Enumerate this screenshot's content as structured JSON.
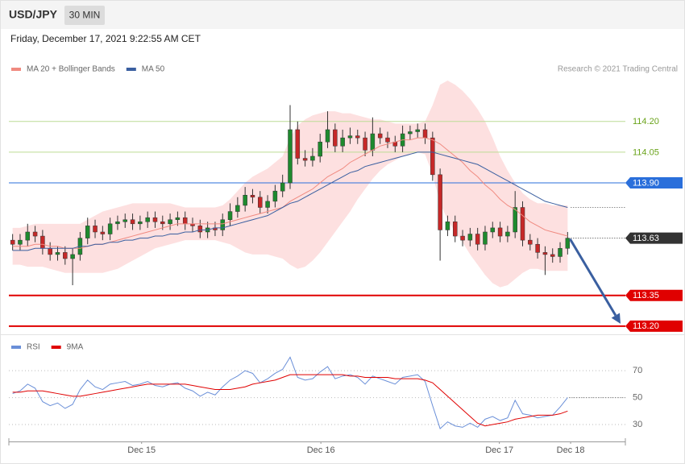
{
  "header": {
    "symbol": "USD/JPY",
    "interval": "30 MIN",
    "timestamp": "Friday, December 17, 2021 9:22:55 AM CET"
  },
  "chart_data": [
    {
      "type": "candlestick",
      "credit": "Research © 2021 Trading Central",
      "up_color": "#1e8a2e",
      "down_color": "#c62828",
      "xlim": [
        -0.5,
        81.7
      ],
      "ylim": [
        113.16,
        114.4
      ],
      "open": [
        113.62,
        113.6,
        113.62,
        113.66,
        113.64,
        113.58,
        113.55,
        113.56,
        113.53,
        113.55,
        113.63,
        113.69,
        113.66,
        113.65,
        113.7,
        113.71,
        113.72,
        113.7,
        113.71,
        113.73,
        113.71,
        113.7,
        113.72,
        113.73,
        113.7,
        113.69,
        113.66,
        113.68,
        113.67,
        113.72,
        113.76,
        113.79,
        113.84,
        113.83,
        113.78,
        113.81,
        113.86,
        113.9,
        114.16,
        114.02,
        114.01,
        114.03,
        114.1,
        114.16,
        114.08,
        114.12,
        114.13,
        114.12,
        114.06,
        114.14,
        114.12,
        114.1,
        114.08,
        114.14,
        114.15,
        114.16,
        114.12,
        113.94,
        113.67,
        113.71,
        113.64,
        113.62,
        113.65,
        113.6,
        113.66,
        113.68,
        113.64,
        113.66,
        113.78,
        113.62,
        113.6,
        113.56,
        113.55,
        113.54,
        113.58
      ],
      "high": [
        113.65,
        113.65,
        113.7,
        113.69,
        113.67,
        113.61,
        113.59,
        113.59,
        113.58,
        113.66,
        113.73,
        113.72,
        113.69,
        113.73,
        113.74,
        113.75,
        113.75,
        113.74,
        113.76,
        113.76,
        113.74,
        113.75,
        113.76,
        113.76,
        113.73,
        113.72,
        113.71,
        113.71,
        113.75,
        113.8,
        113.83,
        113.88,
        113.87,
        113.86,
        113.84,
        113.89,
        113.94,
        114.28,
        114.2,
        114.06,
        114.07,
        114.14,
        114.25,
        114.19,
        114.16,
        114.17,
        114.16,
        114.15,
        114.22,
        114.17,
        114.15,
        114.13,
        114.18,
        114.18,
        114.19,
        114.19,
        114.15,
        113.97,
        113.74,
        113.74,
        113.67,
        113.68,
        113.68,
        113.69,
        113.71,
        113.71,
        113.69,
        113.86,
        113.81,
        113.65,
        113.63,
        113.59,
        113.58,
        113.61,
        113.66
      ],
      "low": [
        113.57,
        113.57,
        113.59,
        113.61,
        113.55,
        113.52,
        113.52,
        113.5,
        113.4,
        113.52,
        113.6,
        113.63,
        113.62,
        113.62,
        113.67,
        113.68,
        113.67,
        113.67,
        113.68,
        113.68,
        113.67,
        113.67,
        113.69,
        113.67,
        113.66,
        113.63,
        113.63,
        113.64,
        113.64,
        113.69,
        113.73,
        113.76,
        113.8,
        113.75,
        113.75,
        113.78,
        113.83,
        113.87,
        113.99,
        113.98,
        113.98,
        114.0,
        114.07,
        114.05,
        114.05,
        114.09,
        114.09,
        114.03,
        114.03,
        114.09,
        114.07,
        114.05,
        114.05,
        114.11,
        114.12,
        114.09,
        113.91,
        113.52,
        113.64,
        113.61,
        113.59,
        113.59,
        113.57,
        113.57,
        113.63,
        113.61,
        113.61,
        113.63,
        113.59,
        113.57,
        113.53,
        113.45,
        113.51,
        113.51,
        113.55
      ],
      "close": [
        113.6,
        113.62,
        113.66,
        113.64,
        113.58,
        113.55,
        113.56,
        113.53,
        113.55,
        113.63,
        113.69,
        113.66,
        113.65,
        113.7,
        113.71,
        113.72,
        113.7,
        113.71,
        113.73,
        113.71,
        113.7,
        113.72,
        113.73,
        113.7,
        113.69,
        113.66,
        113.68,
        113.67,
        113.72,
        113.76,
        113.79,
        113.84,
        113.83,
        113.78,
        113.81,
        113.86,
        113.9,
        114.16,
        114.02,
        114.01,
        114.03,
        114.1,
        114.16,
        114.08,
        114.12,
        114.13,
        114.12,
        114.06,
        114.14,
        114.12,
        114.1,
        114.08,
        114.14,
        114.15,
        114.16,
        114.12,
        113.94,
        113.67,
        113.71,
        113.64,
        113.62,
        113.65,
        113.6,
        113.66,
        113.68,
        113.64,
        113.66,
        113.78,
        113.62,
        113.6,
        113.56,
        113.55,
        113.54,
        113.58,
        113.63
      ],
      "series": [
        {
          "name": "MA 20 + Bollinger Bands",
          "color": "#f08a80",
          "band_color": "#fde0e0",
          "values": [
            113.59,
            113.59,
            113.59,
            113.6,
            113.6,
            113.59,
            113.59,
            113.58,
            113.58,
            113.58,
            113.59,
            113.6,
            113.6,
            113.61,
            113.62,
            113.63,
            113.64,
            113.65,
            113.66,
            113.67,
            113.68,
            113.69,
            113.7,
            113.7,
            113.7,
            113.7,
            113.7,
            113.7,
            113.7,
            113.71,
            113.72,
            113.73,
            113.74,
            113.75,
            113.76,
            113.77,
            113.78,
            113.81,
            113.83,
            113.85,
            113.87,
            113.9,
            113.93,
            113.95,
            113.97,
            114.0,
            114.02,
            114.04,
            114.06,
            114.08,
            114.09,
            114.1,
            114.11,
            114.11,
            114.12,
            114.12,
            114.11,
            114.09,
            114.06,
            114.03,
            114.0,
            113.96,
            113.93,
            113.89,
            113.86,
            113.82,
            113.79,
            113.77,
            113.74,
            113.71,
            113.69,
            113.67,
            113.66,
            113.65,
            113.64
          ],
          "upper": [
            113.68,
            113.68,
            113.69,
            113.7,
            113.7,
            113.7,
            113.7,
            113.7,
            113.7,
            113.7,
            113.72,
            113.74,
            113.76,
            113.77,
            113.78,
            113.79,
            113.8,
            113.8,
            113.8,
            113.8,
            113.8,
            113.8,
            113.79,
            113.78,
            113.78,
            113.78,
            113.78,
            113.78,
            113.79,
            113.82,
            113.86,
            113.9,
            113.93,
            113.95,
            113.97,
            114.0,
            114.03,
            114.12,
            114.18,
            114.21,
            114.23,
            114.24,
            114.25,
            114.25,
            114.24,
            114.24,
            114.23,
            114.22,
            114.21,
            114.21,
            114.2,
            114.19,
            114.19,
            114.19,
            114.19,
            114.2,
            114.28,
            114.38,
            114.4,
            114.38,
            114.35,
            114.31,
            114.26,
            114.2,
            114.12,
            114.03,
            113.96,
            113.9,
            113.85,
            113.82,
            113.8,
            113.8,
            113.79,
            113.79,
            113.79
          ],
          "lower": [
            113.5,
            113.5,
            113.49,
            113.49,
            113.49,
            113.48,
            113.47,
            113.46,
            113.46,
            113.46,
            113.46,
            113.46,
            113.46,
            113.47,
            113.48,
            113.5,
            113.52,
            113.54,
            113.56,
            113.58,
            113.59,
            113.6,
            113.61,
            113.62,
            113.62,
            113.62,
            113.62,
            113.62,
            113.61,
            113.6,
            113.58,
            113.56,
            113.55,
            113.55,
            113.55,
            113.54,
            113.53,
            113.5,
            113.48,
            113.49,
            113.52,
            113.56,
            113.61,
            113.66,
            113.71,
            113.76,
            113.82,
            113.87,
            113.92,
            113.96,
            113.99,
            114.01,
            114.03,
            114.04,
            114.05,
            114.04,
            113.94,
            113.8,
            113.72,
            113.66,
            113.61,
            113.55,
            113.5,
            113.45,
            113.41,
            113.39,
            113.4,
            113.43,
            113.46,
            113.48,
            113.48,
            113.47,
            113.47,
            113.47,
            113.47
          ]
        },
        {
          "name": "MA 50",
          "color": "#3a5fa0",
          "values": [
            113.57,
            113.57,
            113.57,
            113.58,
            113.58,
            113.58,
            113.58,
            113.58,
            113.58,
            113.59,
            113.59,
            113.6,
            113.6,
            113.61,
            113.61,
            113.62,
            113.62,
            113.63,
            113.63,
            113.64,
            113.64,
            113.65,
            113.65,
            113.66,
            113.66,
            113.67,
            113.67,
            113.68,
            113.68,
            113.69,
            113.7,
            113.71,
            113.72,
            113.73,
            113.74,
            113.76,
            113.78,
            113.8,
            113.81,
            113.83,
            113.85,
            113.87,
            113.89,
            113.91,
            113.93,
            113.95,
            113.96,
            113.98,
            113.99,
            114.0,
            114.01,
            114.02,
            114.03,
            114.04,
            114.05,
            114.05,
            114.05,
            114.04,
            114.03,
            114.02,
            114.01,
            114.0,
            113.99,
            113.97,
            113.95,
            113.93,
            113.91,
            113.89,
            113.87,
            113.85,
            113.83,
            113.81,
            113.8,
            113.79,
            113.78
          ]
        }
      ],
      "levels": [
        {
          "value": 114.2,
          "label": "114.20",
          "color": "#6aa31a",
          "line": "#bcdc95",
          "style": "solid",
          "box": false,
          "width": 1
        },
        {
          "value": 114.05,
          "label": "114.05",
          "color": "#6aa31a",
          "line": "#bcdc95",
          "style": "solid",
          "box": false,
          "width": 1
        },
        {
          "value": 113.9,
          "label": "113.90",
          "color": "#2a6fdb",
          "line": "#2a6fdb",
          "style": "solid",
          "box": true,
          "width": 1
        },
        {
          "value": 113.63,
          "color": "#333333",
          "line": "#333333",
          "style": "dotted",
          "box": true,
          "width": 1
        },
        {
          "value": 113.35,
          "color": "#e00000",
          "line": "#e00000",
          "style": "solid",
          "box": true,
          "width": 2
        },
        {
          "value": 113.2,
          "label": "113.20",
          "color": "#e00000",
          "line": "#e00000",
          "style": "solid",
          "box": true,
          "width": 2
        }
      ]
    },
    {
      "type": "line",
      "xlim": [
        -0.5,
        81.7
      ],
      "ylim": [
        19.5,
        94
      ],
      "yticks": [
        30,
        50,
        70
      ],
      "xticks": [
        {
          "value": 17.2,
          "label": "Dec 15"
        },
        {
          "value": 41.1,
          "label": "Dec 16"
        },
        {
          "value": 64.9,
          "label": "Dec 17"
        },
        {
          "value": 74.4,
          "label": "Dec 18"
        }
      ],
      "series": [
        {
          "name": "RSI",
          "color": "#6a8fd8",
          "values": [
            53,
            55,
            60,
            57,
            47,
            44,
            46,
            42,
            45,
            56,
            63,
            58,
            56,
            60,
            61,
            62,
            59,
            60,
            62,
            59,
            58,
            60,
            61,
            57,
            55,
            51,
            54,
            52,
            58,
            63,
            66,
            70,
            68,
            61,
            64,
            68,
            71,
            80,
            65,
            63,
            64,
            69,
            73,
            64,
            66,
            67,
            65,
            60,
            66,
            64,
            62,
            60,
            65,
            66,
            67,
            62,
            44,
            27,
            32,
            29,
            28,
            31,
            28,
            34,
            36,
            33,
            35,
            48,
            38,
            37,
            35,
            36,
            37,
            43,
            50
          ]
        },
        {
          "name": "9MA",
          "color": "#e00000",
          "values": [
            54,
            54,
            55,
            55,
            55,
            54,
            53,
            52,
            51,
            51,
            52,
            53,
            54,
            55,
            56,
            57,
            58,
            59,
            60,
            60,
            60,
            60,
            60,
            60,
            59,
            58,
            57,
            56,
            56,
            56,
            57,
            58,
            60,
            61,
            62,
            63,
            65,
            67,
            67,
            67,
            67,
            67,
            67,
            67,
            67,
            66,
            66,
            65,
            65,
            65,
            65,
            64,
            64,
            64,
            64,
            63,
            61,
            56,
            51,
            46,
            41,
            36,
            31,
            29,
            30,
            31,
            32,
            34,
            35,
            36,
            37,
            37,
            37,
            38,
            40
          ]
        }
      ]
    }
  ]
}
